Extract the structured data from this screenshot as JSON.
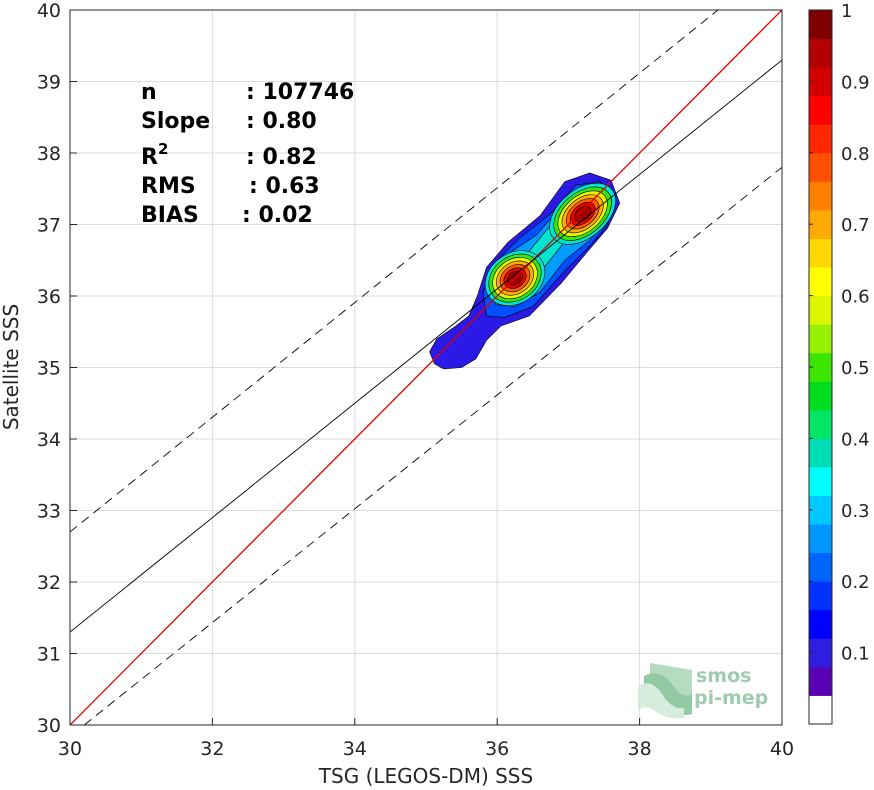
{
  "chart_data": {
    "type": "heatmap",
    "title": "",
    "xlabel": "TSG (LEGOS-DM) SSS",
    "ylabel": "Satellite SSS",
    "xlim": [
      30,
      40
    ],
    "ylim": [
      30,
      40
    ],
    "xticks": [
      "30",
      "32",
      "34",
      "36",
      "38",
      "40"
    ],
    "yticks": [
      "30",
      "31",
      "32",
      "33",
      "34",
      "35",
      "36",
      "37",
      "38",
      "39",
      "40"
    ],
    "grid": true,
    "density_peaks": [
      {
        "x": 36.25,
        "y": 36.25,
        "value": 1.0
      },
      {
        "x": 37.2,
        "y": 37.15,
        "value": 1.0
      }
    ],
    "lines": {
      "one_to_one": {
        "slope": 1.0,
        "intercept": 0.0,
        "color": "#e00000"
      },
      "regression": {
        "slope": 0.8,
        "intercept": 7.3,
        "color": "#000000"
      },
      "upper_bound": {
        "x": [
          30,
          39.1
        ],
        "y": [
          32.7,
          40
        ]
      },
      "lower_bound": {
        "x": [
          30.2,
          40
        ],
        "y": [
          30,
          37.8
        ]
      }
    },
    "stats": [
      {
        "label": "n",
        "value": ": 107746"
      },
      {
        "label": "Slope",
        "value": ": 0.80"
      },
      {
        "label": "R",
        "sup": "2",
        "value": ": 0.82"
      },
      {
        "label": "RMS",
        "value": ": 0.63"
      },
      {
        "label": "BIAS",
        "value": ": 0.02"
      }
    ],
    "colorbar": {
      "ticks": [
        "0.1",
        "0.2",
        "0.3",
        "0.4",
        "0.5",
        "0.6",
        "0.7",
        "0.8",
        "0.9",
        "1"
      ],
      "tick_values": [
        0.1,
        0.2,
        0.3,
        0.4,
        0.5,
        0.6,
        0.7,
        0.8,
        0.9,
        1.0
      ],
      "range": [
        0,
        1
      ],
      "colors": [
        "#ffffff",
        "#5a00b4",
        "#2f1ee0",
        "#0000ff",
        "#0032ff",
        "#0064ff",
        "#0096ff",
        "#00c8ff",
        "#00ffff",
        "#00dcb4",
        "#00e664",
        "#00dc1e",
        "#3ce600",
        "#96f000",
        "#dcf500",
        "#ffff00",
        "#ffd700",
        "#ffaa00",
        "#ff8000",
        "#ff5000",
        "#ff2800",
        "#ff0000",
        "#d20000",
        "#b40000",
        "#800000"
      ]
    },
    "contour_colors": [
      "#2b1ae6",
      "#0050ff",
      "#009cff",
      "#00e4d0",
      "#37e60f",
      "#e8f500",
      "#ffb000",
      "#ff5a00",
      "#e60000",
      "#a00000"
    ]
  },
  "logo": {
    "line1": "smos",
    "line2": "pi-mep"
  }
}
